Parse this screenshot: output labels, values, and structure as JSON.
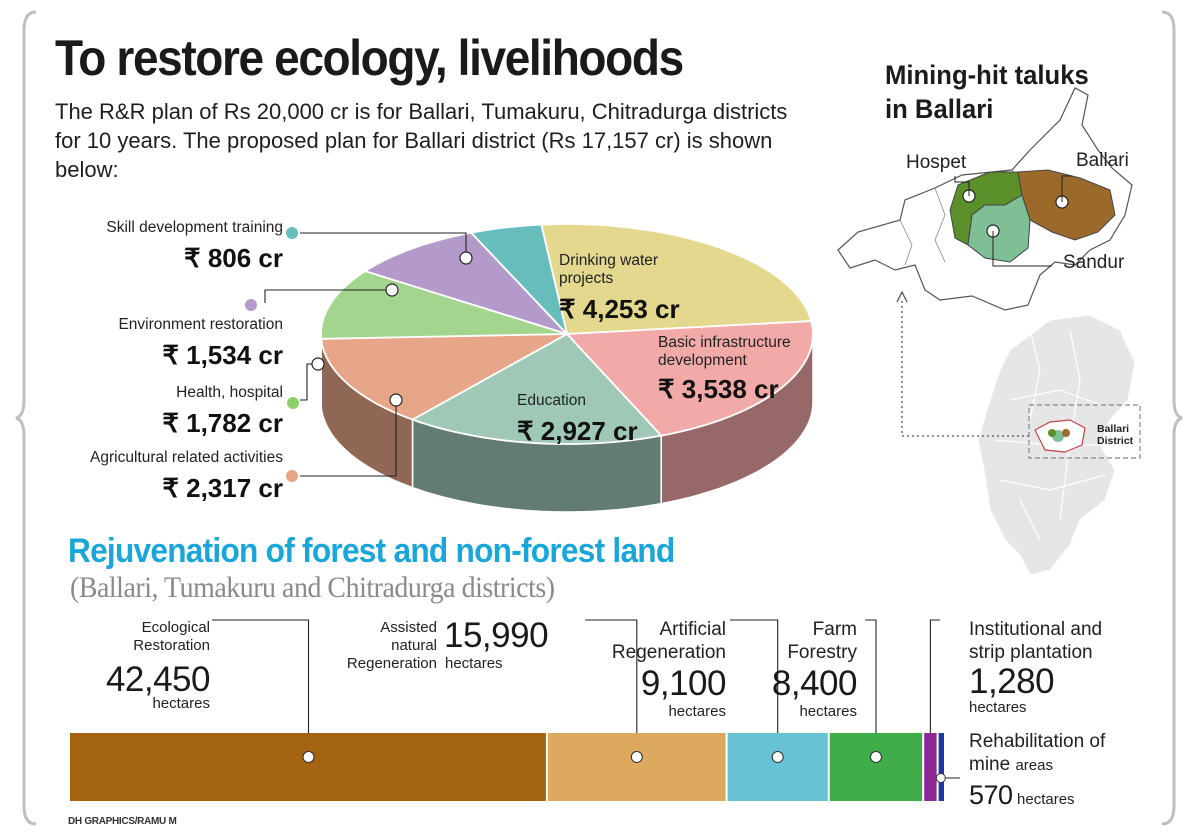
{
  "title": "To restore ecology, livelihoods",
  "intro": "The R&R plan of Rs 20,000 cr is for Ballari, Tumakuru, Chitradurga districts for 10 years. The proposed plan for Ballari district (Rs 17,157 cr) is shown below:",
  "map": {
    "title_line1": "Mining-hit taluks",
    "title_line2": "in Ballari",
    "taluks": {
      "hospet": "Hospet",
      "ballari": "Ballari",
      "sandur": "Sandur"
    },
    "inset_label_line1": "Ballari",
    "inset_label_line2": "District",
    "colors": {
      "hospet": "#5b8f2a",
      "ballari": "#9b6a2a",
      "sandur": "#7fbf95"
    }
  },
  "rejuvenation": {
    "title": "Rejuvenation of forest and non-forest land",
    "subtitle": "(Ballari, Tumakuru and Chitradurga districts)",
    "items": [
      {
        "name": [
          "Ecological",
          "Restoration"
        ],
        "value": "42,450",
        "unit": "hectares"
      },
      {
        "name": [
          "Assisted",
          "natural",
          "Regeneration"
        ],
        "value": "15,990",
        "unit": "hectares"
      },
      {
        "name": [
          "Artificial",
          "Regeneration"
        ],
        "value": "9,100",
        "unit": "hectares"
      },
      {
        "name": [
          "Farm",
          "Forestry"
        ],
        "value": "8,400",
        "unit": "hectares"
      },
      {
        "name": [
          "Institutional and",
          "strip plantation"
        ],
        "value": "1,280",
        "unit": "hectares"
      },
      {
        "name": [
          "Rehabilitation of",
          "mine"
        ],
        "name_suffix": "areas",
        "value": "570",
        "unit": "hectares"
      }
    ]
  },
  "credit": "DH GRAPHICS/RAMU M",
  "chart_data": [
    {
      "type": "pie",
      "title": "",
      "slices": [
        {
          "label": "Drinking water projects",
          "value": 4253,
          "display": "₹ 4,253 cr",
          "color": "#e3d88e"
        },
        {
          "label": "Basic infrastructure development",
          "value": 3538,
          "display": "₹ 3,538 cr",
          "color": "#f2aaa8"
        },
        {
          "label": "Education",
          "value": 2927,
          "display": "₹ 2,927 cr",
          "color": "#9fc8b6"
        },
        {
          "label": "Agricultural related activities",
          "value": 2317,
          "display": "₹ 2,317 cr",
          "color": "#e8a688"
        },
        {
          "label": "Health, hospital",
          "value": 1782,
          "display": "₹ 1,782 cr",
          "color": "#a3d58e"
        },
        {
          "label": "Environment restoration",
          "value": 1534,
          "display": "₹ 1,534 cr",
          "color": "#b39acb"
        },
        {
          "label": "Skill development training",
          "value": 806,
          "display": "₹ 806 cr",
          "color": "#67bcbc"
        }
      ]
    },
    {
      "type": "bar",
      "orientation": "horizontal-stacked",
      "title": "Rejuvenation of forest and non-forest land",
      "unit": "hectares",
      "categories": [
        "Ecological Restoration",
        "Assisted natural Regeneration",
        "Artificial Regeneration",
        "Farm Forestry",
        "Institutional and strip plantation",
        "Rehabilitation of mine areas"
      ],
      "values": [
        42450,
        15990,
        9100,
        8400,
        1280,
        570
      ],
      "colors": [
        "#a4630f",
        "#dca95e",
        "#67c3d4",
        "#3fac4a",
        "#8d2891",
        "#23379a"
      ]
    }
  ]
}
